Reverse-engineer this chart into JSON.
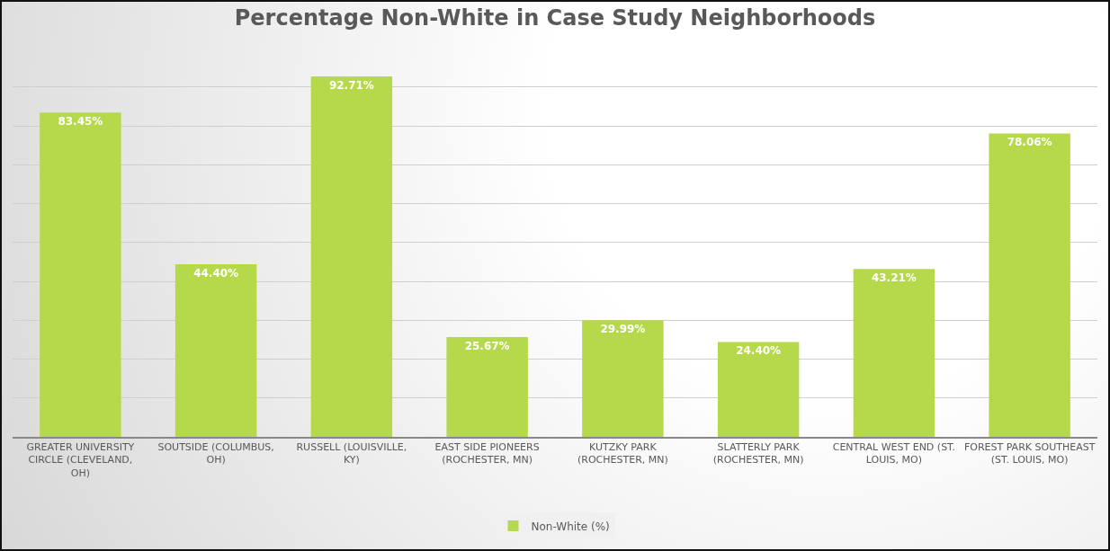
{
  "chart_data": {
    "type": "bar",
    "title": "Percentage Non-White in Case Study Neighborhoods",
    "categories": [
      "GREATER UNIVERSITY CIRCLE (CLEVELAND, OH)",
      "SOUTSIDE (COLUMBUS, OH)",
      "RUSSELL (LOUISVILLE, KY)",
      "EAST SIDE PIONEERS (ROCHESTER, MN)",
      "KUTZKY PARK (ROCHESTER, MN)",
      "SLATTERLY PARK (ROCHESTER, MN)",
      "CENTRAL WEST END (ST. LOUIS, MO)",
      "FOREST PARK SOUTHEAST (ST. LOUIS, MO)"
    ],
    "series": [
      {
        "name": "Non-White (%)",
        "color": "#b5d94a",
        "values": [
          83.45,
          44.4,
          92.71,
          25.67,
          29.99,
          24.4,
          43.21,
          78.06
        ],
        "value_labels": [
          "83.45%",
          "44.40%",
          "92.71%",
          "25.67%",
          "29.99%",
          "24.40%",
          "43.21%",
          "78.06%"
        ]
      }
    ],
    "tick_labels": "x",
    "grid": "y",
    "legend": "bottom"
  }
}
